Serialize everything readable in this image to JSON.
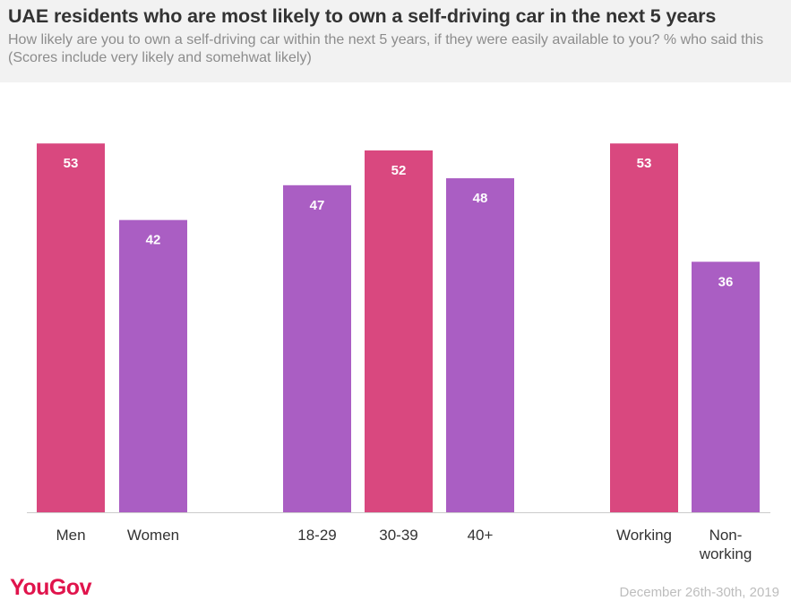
{
  "header": {
    "title": "UAE residents who are most likely to own a self-driving car in the next 5 years",
    "subtitle": "How likely are you to own a self-driving car within the next 5 years, if they were easily available to you? % who said this (Scores include very likely and somehwat likely)"
  },
  "footer": {
    "brand": "YouGov",
    "date": "December 26th-30th, 2019"
  },
  "colors": {
    "pink": "#d9487f",
    "purple": "#aa5ec3",
    "axis": "#cccccc"
  },
  "chart_data": {
    "type": "bar",
    "title": "UAE residents who are most likely to own a self-driving car in the next 5 years",
    "xlabel": "",
    "ylabel": "",
    "ylim": [
      0,
      55
    ],
    "grid": false,
    "legend": "none",
    "groups": [
      {
        "categories": [
          "Men",
          "Women"
        ],
        "values": [
          53,
          42
        ],
        "colors": [
          "pink",
          "purple"
        ]
      },
      {
        "categories": [
          "18-29",
          "30-39",
          "40+"
        ],
        "values": [
          47,
          52,
          48
        ],
        "colors": [
          "purple",
          "pink",
          "purple"
        ]
      },
      {
        "categories": [
          "Working",
          "Non-working"
        ],
        "values": [
          53,
          36
        ],
        "colors": [
          "pink",
          "purple"
        ]
      }
    ]
  }
}
